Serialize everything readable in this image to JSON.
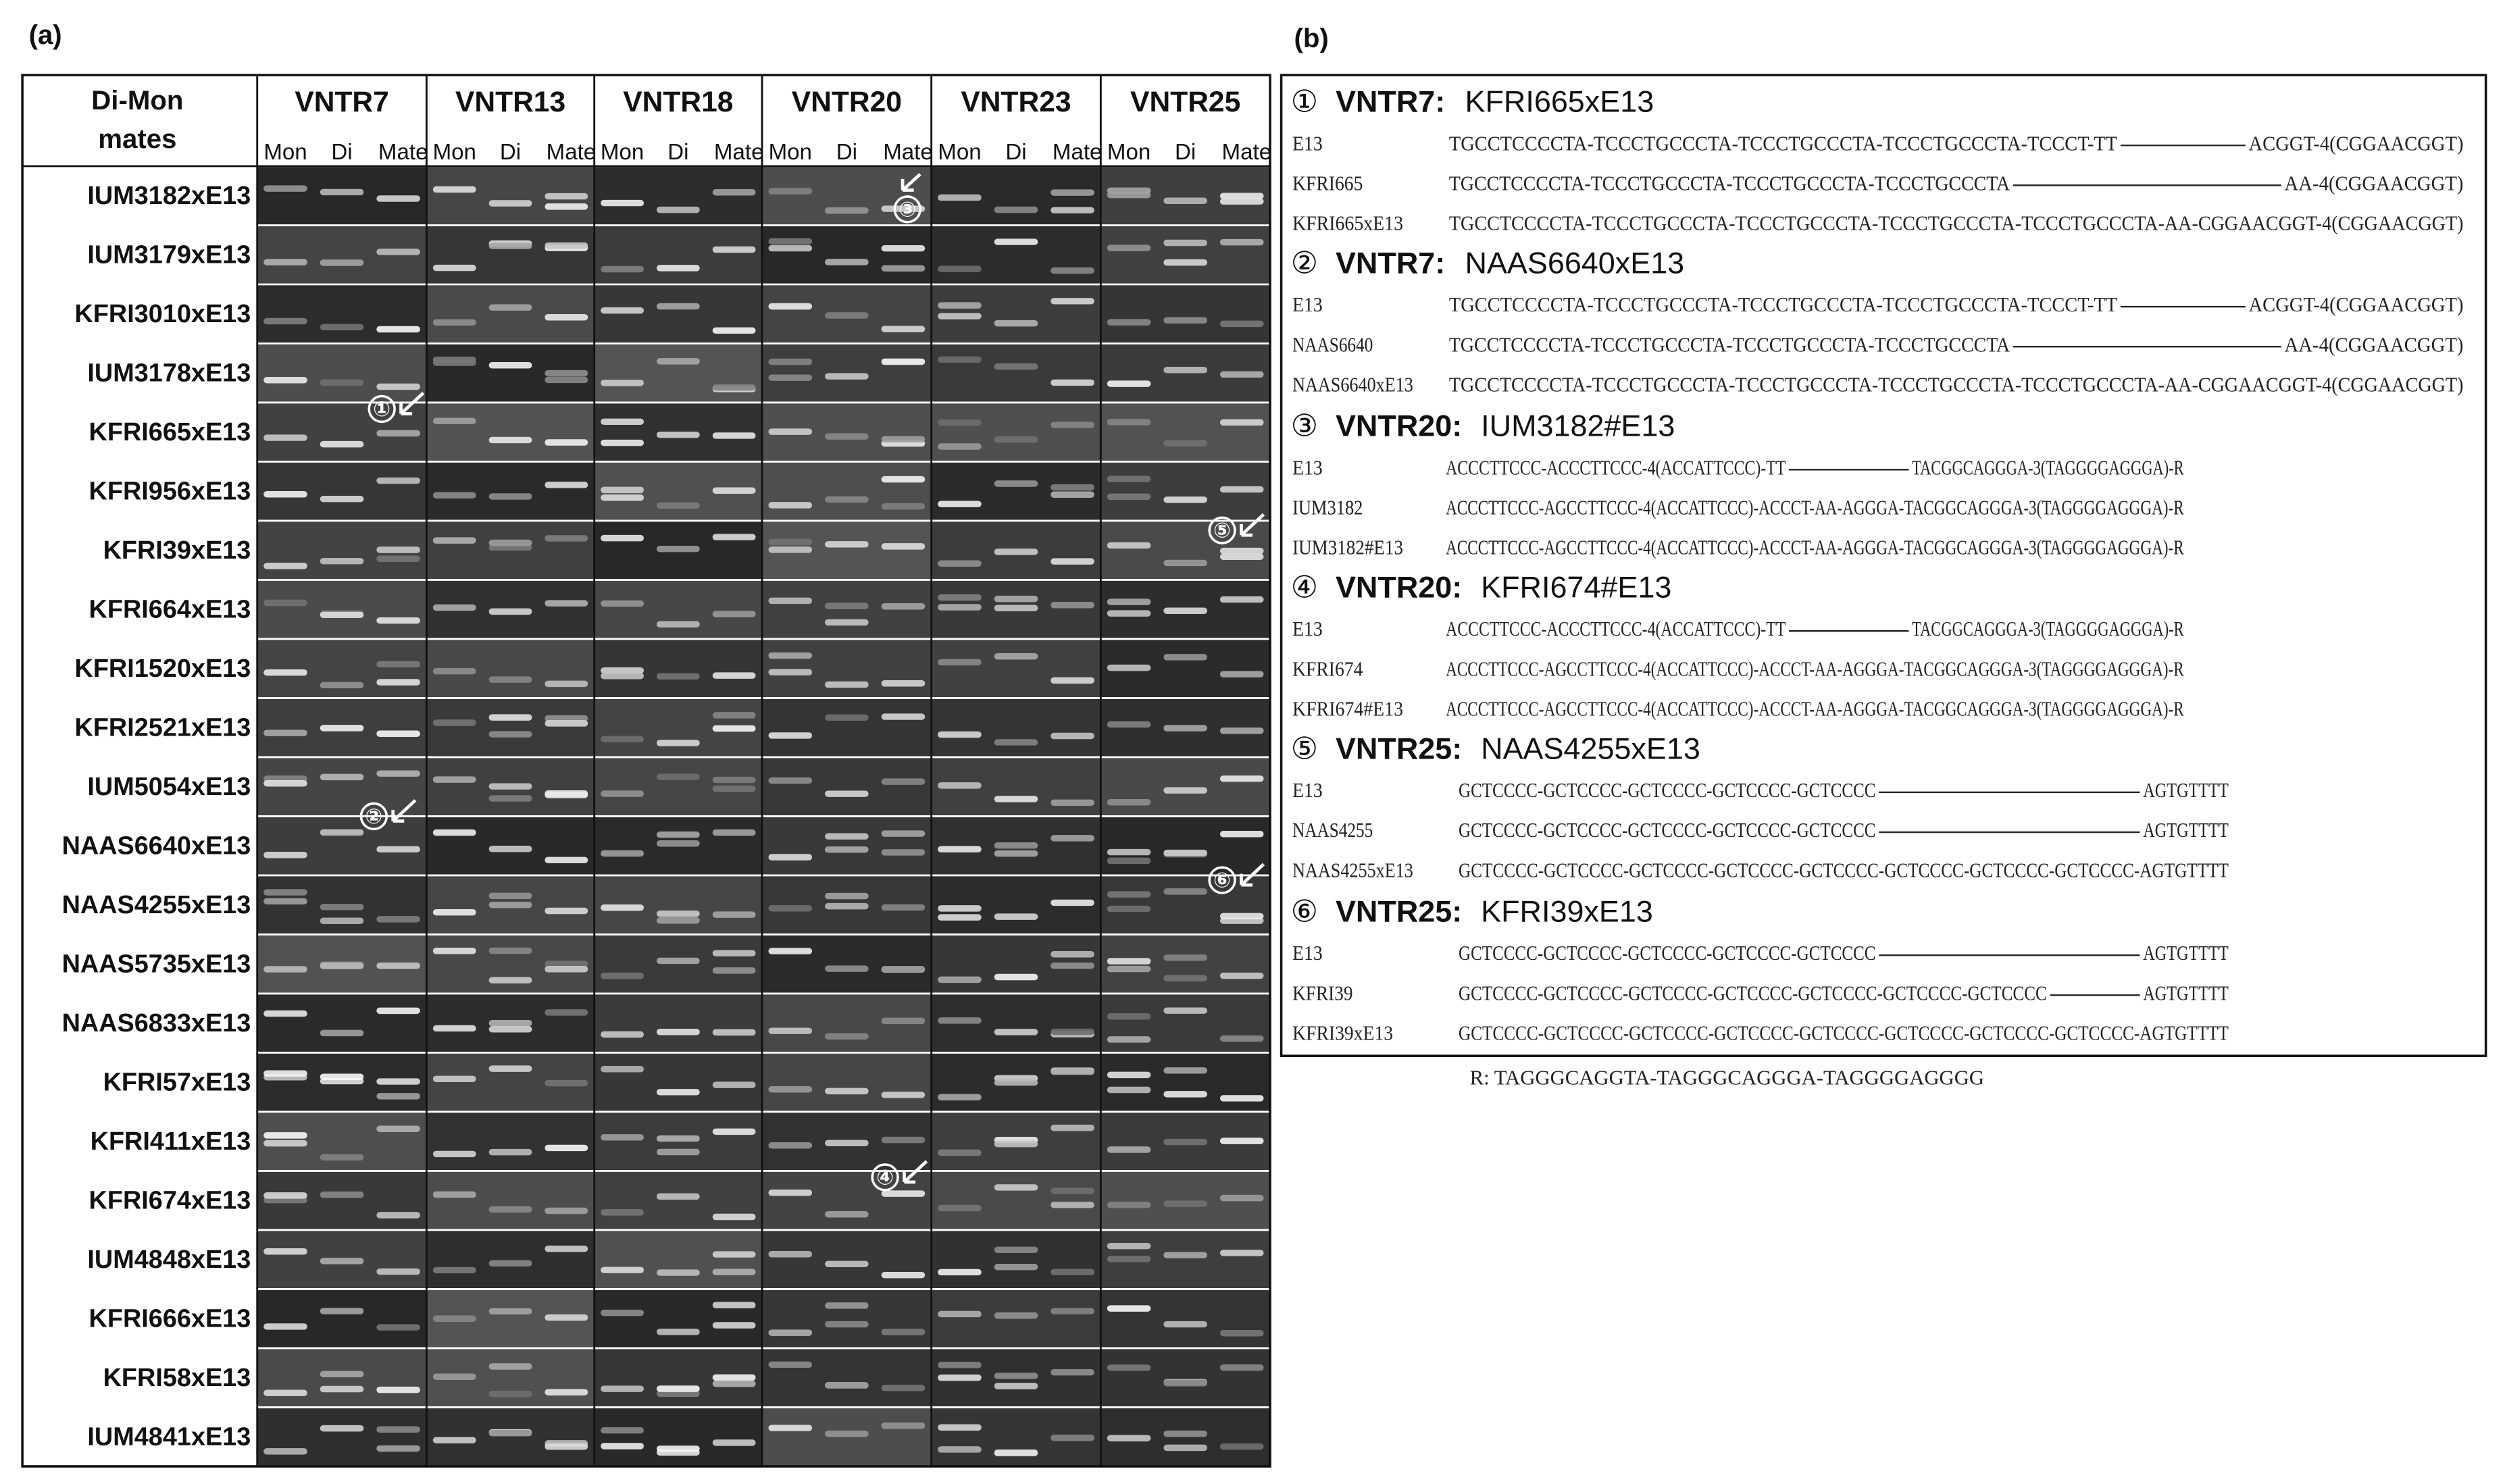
{
  "panel_a": {
    "label": "(a)",
    "corner_header": [
      "Di-Mon",
      "mates"
    ],
    "columns": [
      "VNTR7",
      "VNTR13",
      "VNTR18",
      "VNTR20",
      "VNTR23",
      "VNTR25"
    ],
    "lanes": [
      "Mon",
      "Di",
      "Mate"
    ],
    "rows": [
      "IUM3182xE13",
      "IUM3179xE13",
      "KFRI3010xE13",
      "IUM3178xE13",
      "KFRI665xE13",
      "KFRI956xE13",
      "KFRI39xE13",
      "KFRI664xE13",
      "KFRI1520xE13",
      "KFRI2521xE13",
      "IUM5054xE13",
      "NAAS6640xE13",
      "NAAS4255xE13",
      "NAAS5735xE13",
      "NAAS6833xE13",
      "KFRI57xE13",
      "KFRI411xE13",
      "KFRI674xE13",
      "IUM4848xE13",
      "KFRI666xE13",
      "KFRI58xE13",
      "IUM4841xE13"
    ],
    "markers": [
      "①",
      "②",
      "③",
      "④",
      "⑤",
      "⑥"
    ]
  },
  "panel_b": {
    "label": "(b)",
    "sections": [
      {
        "number": "①",
        "locus": "VNTR7:",
        "cross": "KFRI665xE13",
        "lines": [
          {
            "name": "E13",
            "seq": [
              "TGCCTCCCCTA-TCCCTGCCCTA-TCCCTGCCCTA-TCCCTGCCCTA-TCCCT-TT",
              "ACGGT-4(CGGAACGGT)"
            ]
          },
          {
            "name": "KFRI665",
            "seq": [
              "TGCCTCCCCTA-TCCCTGCCCTA-TCCCTGCCCTA-TCCCTGCCCTA",
              "AA-4(CGGAACGGT)"
            ]
          },
          {
            "name": "KFRI665xE13",
            "seq": [
              "TGCCTCCCCTA-TCCCTGCCCTA-TCCCTGCCCTA-TCCCTGCCCTA-TCCCTGCCCTA-AA-CGGAACGGT-4(CGGAACGGT)"
            ]
          }
        ]
      },
      {
        "number": "②",
        "locus": "VNTR7:",
        "cross": "NAAS6640xE13",
        "lines": [
          {
            "name": "E13",
            "seq": [
              "TGCCTCCCCTA-TCCCTGCCCTA-TCCCTGCCCTA-TCCCTGCCCTA-TCCCT-TT",
              "ACGGT-4(CGGAACGGT)"
            ]
          },
          {
            "name": "NAAS6640",
            "seq": [
              "TGCCTCCCCTA-TCCCTGCCCTA-TCCCTGCCCTA-TCCCTGCCCTA",
              "AA-4(CGGAACGGT)"
            ]
          },
          {
            "name": "NAAS6640xE13",
            "seq": [
              "TGCCTCCCCTA-TCCCTGCCCTA-TCCCTGCCCTA-TCCCTGCCCTA-TCCCTGCCCTA-AA-CGGAACGGT-4(CGGAACGGT)"
            ]
          }
        ]
      },
      {
        "number": "③",
        "locus": "VNTR20:",
        "cross": "IUM3182#E13",
        "lines": [
          {
            "name": "E13",
            "seq": [
              "ACCCTTCCC-ACCCTTCCC-4(ACCATTCCC)-TT",
              "TACGGCAGGGA-3(TAGGGGAGGGA)-R"
            ]
          },
          {
            "name": "IUM3182",
            "seq": [
              "ACCCTTCCC-AGCCTTCCC-4(ACCATTCCC)-ACCCT-AA-AGGGA-TACGGCAGGGA-3(TAGGGGAGGGA)-R"
            ]
          },
          {
            "name": "IUM3182#E13",
            "seq": [
              "ACCCTTCCC-AGCCTTCCC-4(ACCATTCCC)-ACCCT-AA-AGGGA-TACGGCAGGGA-3(TAGGGGAGGGA)-R"
            ]
          }
        ]
      },
      {
        "number": "④",
        "locus": "VNTR20:",
        "cross": "KFRI674#E13",
        "lines": [
          {
            "name": "E13",
            "seq": [
              "ACCCTTCCC-ACCCTTCCC-4(ACCATTCCC)-TT",
              "TACGGCAGGGA-3(TAGGGGAGGGA)-R"
            ]
          },
          {
            "name": "KFRI674",
            "seq": [
              "ACCCTTCCC-AGCCTTCCC-4(ACCATTCCC)-ACCCT-AA-AGGGA-TACGGCAGGGA-3(TAGGGGAGGGA)-R"
            ]
          },
          {
            "name": "KFRI674#E13",
            "seq": [
              "ACCCTTCCC-AGCCTTCCC-4(ACCATTCCC)-ACCCT-AA-AGGGA-TACGGCAGGGA-3(TAGGGGAGGGA)-R"
            ]
          }
        ]
      },
      {
        "number": "⑤",
        "locus": "VNTR25:",
        "cross": "NAAS4255xE13",
        "lines": [
          {
            "name": "E13",
            "seq": [
              "GCTCCCC-GCTCCCC-GCTCCCC-GCTCCCC-GCTCCCC",
              "AGTGTTTT"
            ]
          },
          {
            "name": "NAAS4255",
            "seq": [
              "GCTCCCC-GCTCCCC-GCTCCCC-GCTCCCC-GCTCCCC",
              "AGTGTTTT"
            ]
          },
          {
            "name": "NAAS4255xE13",
            "seq": [
              "GCTCCCC-GCTCCCC-GCTCCCC-GCTCCCC-GCTCCCC-GCTCCCC-GCTCCCC-GCTCCCC-AGTGTTTT"
            ]
          }
        ]
      },
      {
        "number": "⑥",
        "locus": "VNTR25:",
        "cross": "KFRI39xE13",
        "lines": [
          {
            "name": "E13",
            "seq": [
              "GCTCCCC-GCTCCCC-GCTCCCC-GCTCCCC-GCTCCCC",
              "AGTGTTTT"
            ]
          },
          {
            "name": "KFRI39",
            "seq": [
              "GCTCCCC-GCTCCCC-GCTCCCC-GCTCCCC-GCTCCCC-GCTCCCC-GCTCCCC",
              "AGTGTTTT"
            ]
          },
          {
            "name": "KFRI39xE13",
            "seq": [
              "GCTCCCC-GCTCCCC-GCTCCCC-GCTCCCC-GCTCCCC-GCTCCCC-GCTCCCC-GCTCCCC-AGTGTTTT"
            ]
          }
        ]
      }
    ],
    "footnote": "R: TAGGGCAGGTA-TAGGGCAGGGA-TAGGGGAGGGG"
  }
}
